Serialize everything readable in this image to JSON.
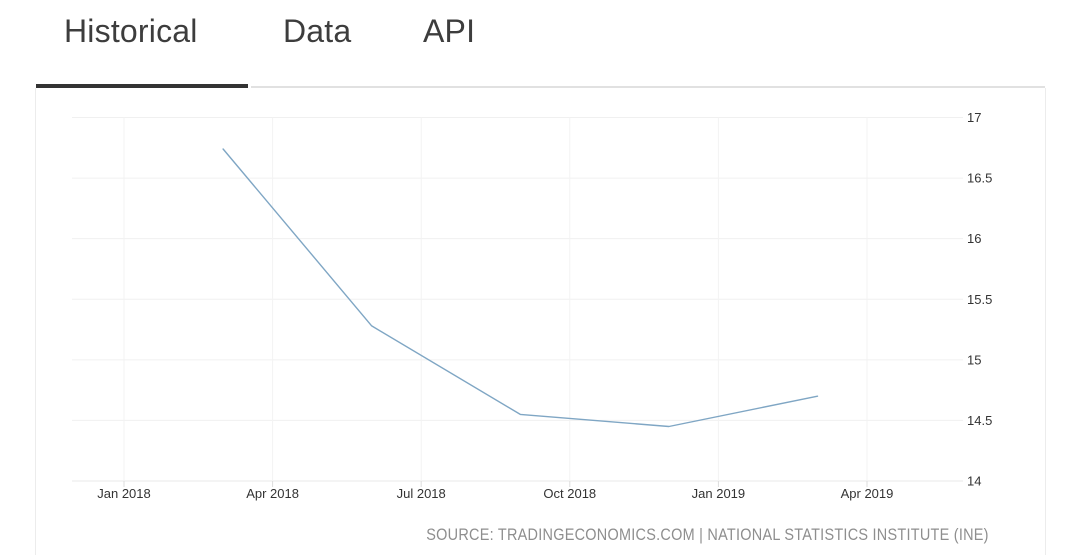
{
  "tabs": [
    {
      "label": "Historical",
      "active": true
    },
    {
      "label": "Data",
      "active": false
    },
    {
      "label": "API",
      "active": false
    }
  ],
  "chart_data": {
    "type": "line",
    "title": "",
    "xlabel": "",
    "ylabel": "",
    "x_labels": [
      "Mar 2018",
      "Jun 2018",
      "Sep 2018",
      "Dec 2018",
      "Mar 2019"
    ],
    "x_months_from_jan2018": [
      2,
      5,
      8,
      11,
      14
    ],
    "values": [
      16.74,
      15.28,
      14.55,
      14.45,
      14.7
    ],
    "x_tick_labels": [
      "Jan 2018",
      "Apr 2018",
      "Jul 2018",
      "Oct 2018",
      "Jan 2019",
      "Apr 2019"
    ],
    "x_tick_months": [
      0,
      3,
      6,
      9,
      12,
      15
    ],
    "y_ticks": [
      14,
      14.5,
      15,
      15.5,
      16,
      16.5,
      17
    ],
    "y_tick_labels": [
      "14",
      "14.5",
      "15",
      "15.5",
      "16",
      "16.5",
      "17"
    ],
    "ylim": [
      14,
      17
    ],
    "grid": true,
    "legend_position": "none",
    "line_color": "#7fa6c4"
  },
  "source": {
    "text": "SOURCE: TRADINGECONOMICS.COM | NATIONAL STATISTICS INSTITUTE (INE)"
  },
  "colors": {
    "tab_text": "#3d3d3d",
    "active_tab_underline": "#333333",
    "tab_track": "#e1e1e1",
    "h_gridline": "#f0f0f0",
    "v_gridline": "#f3f3f3",
    "axis_line": "#e8e8e8",
    "tick": "#dddddd",
    "axis_label": "#333333",
    "source_text": "#8e8e8e",
    "panel_border": "#ececec",
    "series_line": "#7fa6c4"
  }
}
